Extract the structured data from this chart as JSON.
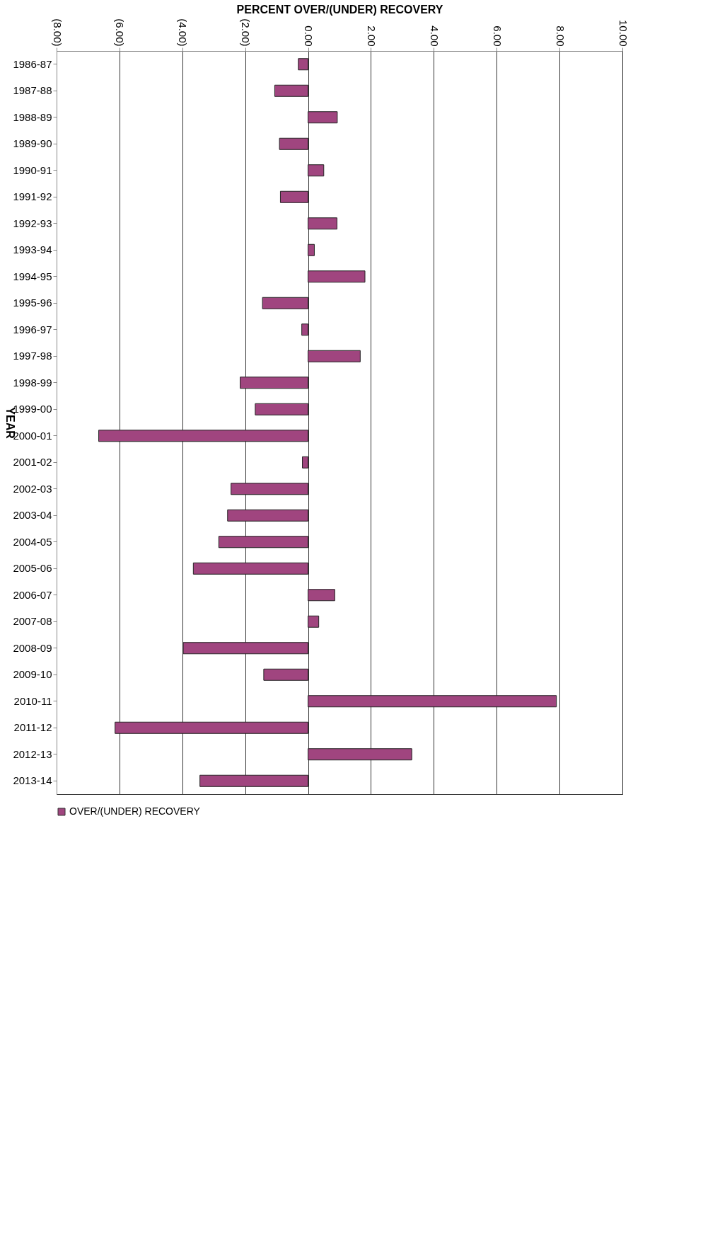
{
  "chart_data": {
    "type": "bar",
    "orientation": "horizontal",
    "xlabel": "PERCENT OVER/(UNDER) RECOVERY",
    "ylabel": "YEAR",
    "categories": [
      "1986-87",
      "1987-88",
      "1988-89",
      "1989-90",
      "1990-91",
      "1991-92",
      "1992-93",
      "1993-94",
      "1994-95",
      "1995-96",
      "1996-97",
      "1997-98",
      "1998-99",
      "1999-00",
      "2000-01",
      "2001-02",
      "2002-03",
      "2003-04",
      "2004-05",
      "2005-06",
      "2006-07",
      "2007-08",
      "2008-09",
      "2009-10",
      "2010-11",
      "2011-12",
      "2012-13",
      "2013-14"
    ],
    "series": [
      {
        "name": "OVER/(UNDER) RECOVERY",
        "color": "#a0457f",
        "values": [
          -0.31,
          -1.06,
          0.93,
          -0.91,
          0.5,
          -0.88,
          0.92,
          0.2,
          1.81,
          -1.45,
          -0.2,
          1.66,
          -2.16,
          -1.68,
          -6.66,
          -0.18,
          -2.45,
          -2.56,
          -2.84,
          -3.65,
          0.85,
          0.34,
          -3.97,
          -1.41,
          7.9,
          -6.14,
          3.3,
          -3.44
        ]
      }
    ],
    "xlim": [
      -8,
      10
    ],
    "xticks": [
      {
        "value": -8,
        "label": "(8.00)"
      },
      {
        "value": -6,
        "label": "(6.00)"
      },
      {
        "value": -4,
        "label": "(4.00)"
      },
      {
        "value": -2,
        "label": "(2.00)"
      },
      {
        "value": 0,
        "label": "0.00"
      },
      {
        "value": 2,
        "label": "2.00"
      },
      {
        "value": 4,
        "label": "4.00"
      },
      {
        "value": 6,
        "label": "6.00"
      },
      {
        "value": 8,
        "label": "8.00"
      },
      {
        "value": 10,
        "label": "10.00"
      }
    ],
    "grid": "x",
    "legend": "bottom"
  }
}
